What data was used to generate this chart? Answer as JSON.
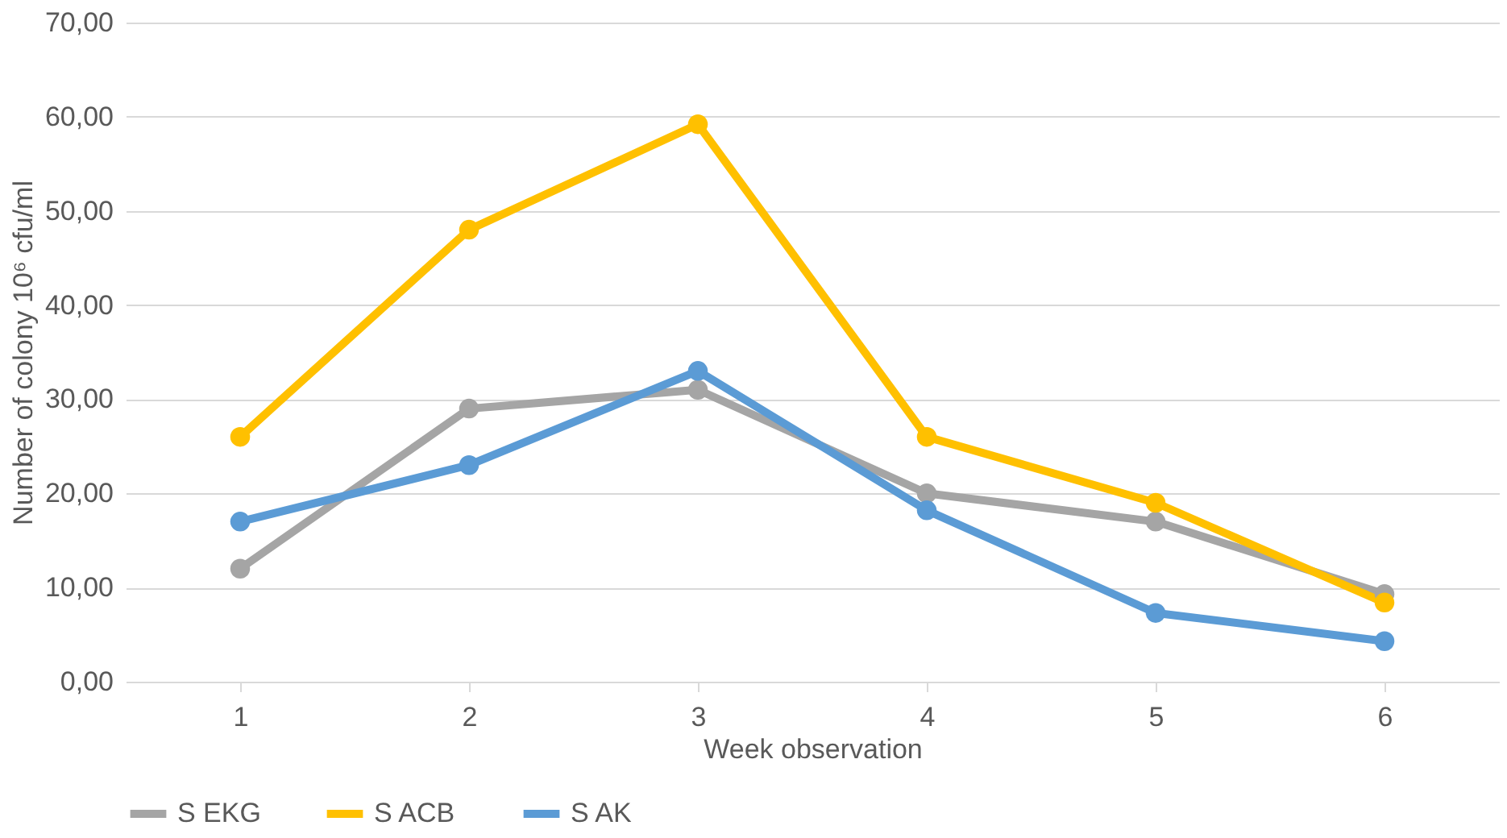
{
  "chart_data": {
    "type": "line",
    "xlabel": "Week observation",
    "ylabel": "Number of colony 10⁶ cfu/ml",
    "categories": [
      "1",
      "2",
      "3",
      "4",
      "5",
      "6"
    ],
    "series": [
      {
        "name": "S EKG",
        "color": "#a5a5a5",
        "values": [
          12,
          29,
          31,
          20,
          17,
          9.3
        ]
      },
      {
        "name": "S ACB",
        "color": "#ffc000",
        "values": [
          26,
          48,
          59.2,
          26,
          19,
          8.4
        ]
      },
      {
        "name": "S AK",
        "color": "#5b9bd5",
        "values": [
          17,
          23,
          33,
          18.2,
          7.3,
          4.3
        ]
      }
    ],
    "ylim": [
      0,
      70
    ],
    "yticks": [
      {
        "value": 0,
        "label": "0,00"
      },
      {
        "value": 10,
        "label": "10,00"
      },
      {
        "value": 20,
        "label": "20,00"
      },
      {
        "value": 30,
        "label": "30,00"
      },
      {
        "value": 40,
        "label": "40,00"
      },
      {
        "value": 50,
        "label": "50,00"
      },
      {
        "value": 60,
        "label": "60,00"
      },
      {
        "value": 70,
        "label": "70,00"
      }
    ],
    "grid": "y",
    "legend": "bottom",
    "marker": "circle",
    "line_style": "solid"
  }
}
